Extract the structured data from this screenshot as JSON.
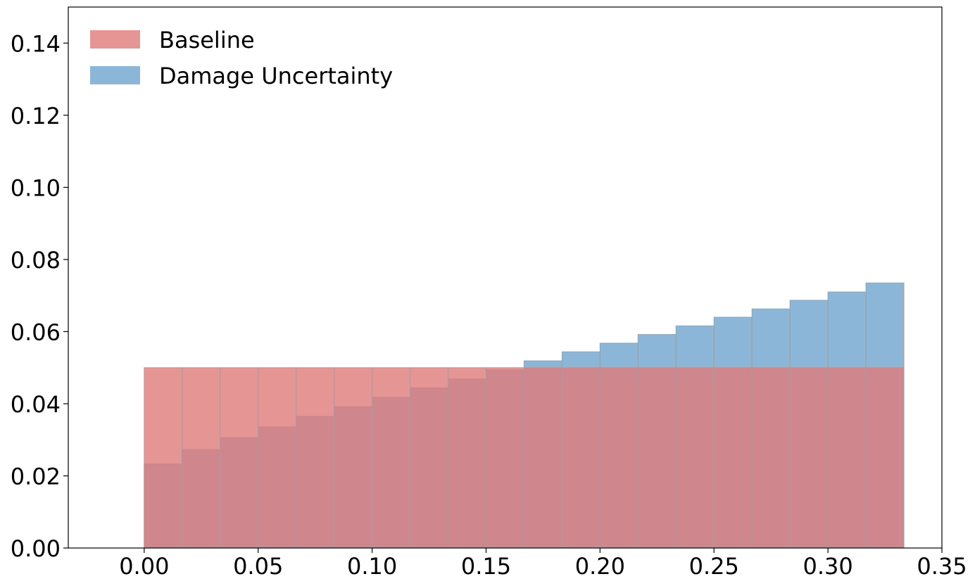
{
  "chart_data": {
    "type": "bar",
    "subtype": "overlapping-histogram",
    "title": "",
    "xlabel": "",
    "ylabel": "",
    "xlim": [
      -0.0333,
      0.35
    ],
    "ylim": [
      0,
      0.15
    ],
    "grid": false,
    "legend_position": "top-left",
    "x_ticks": [
      "0.00",
      "0.05",
      "0.10",
      "0.15",
      "0.20",
      "0.25",
      "0.30",
      "0.35"
    ],
    "y_ticks": [
      "0.00",
      "0.02",
      "0.04",
      "0.06",
      "0.08",
      "0.10",
      "0.12",
      "0.14"
    ],
    "bin_edges": [
      0.0,
      0.01667,
      0.03333,
      0.05,
      0.06667,
      0.08333,
      0.1,
      0.11667,
      0.13333,
      0.15,
      0.16667,
      0.18333,
      0.2,
      0.21667,
      0.23333,
      0.25,
      0.26667,
      0.28333,
      0.3,
      0.31667,
      0.33333
    ],
    "series": [
      {
        "name": "Baseline",
        "color": "#e07b7b",
        "values": [
          0.05,
          0.05,
          0.05,
          0.05,
          0.05,
          0.05,
          0.05,
          0.05,
          0.05,
          0.05,
          0.05,
          0.05,
          0.05,
          0.05,
          0.05,
          0.05,
          0.05,
          0.05,
          0.05,
          0.05
        ]
      },
      {
        "name": "Damage Uncertainty",
        "color": "#6fa4cd",
        "values": [
          0.0233,
          0.0273,
          0.0306,
          0.0336,
          0.0365,
          0.0392,
          0.0418,
          0.0444,
          0.0469,
          0.0494,
          0.0519,
          0.0544,
          0.0568,
          0.0592,
          0.0616,
          0.064,
          0.0663,
          0.0687,
          0.071,
          0.0735
        ]
      }
    ]
  }
}
